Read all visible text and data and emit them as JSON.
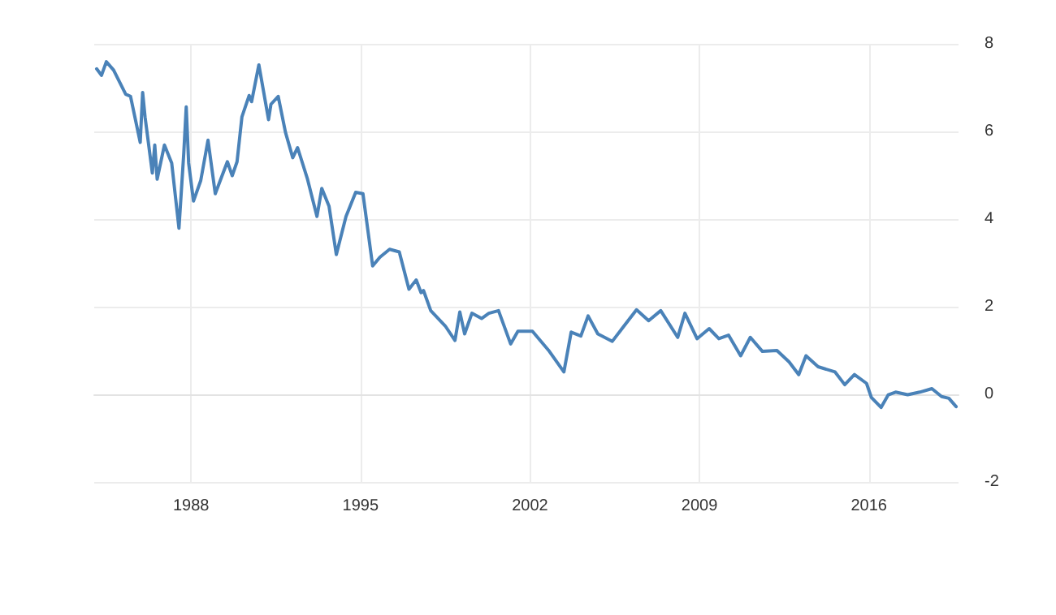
{
  "chart_data": {
    "type": "line",
    "xlim": [
      1984.0,
      2019.7
    ],
    "xticks": [
      1988,
      1995,
      2002,
      2009,
      2016
    ],
    "ylim": [
      -2,
      8
    ],
    "yticks": [
      -2,
      0,
      2,
      4,
      6,
      8
    ],
    "grid": true,
    "marker": "none",
    "line_style": "solid",
    "series": [
      {
        "color": "#4a82b8",
        "x": [
          1984.1,
          1984.3,
          1984.5,
          1984.8,
          1985.3,
          1985.5,
          1985.9,
          1986.0,
          1986.1,
          1986.4,
          1986.5,
          1986.6,
          1986.9,
          1987.2,
          1987.5,
          1987.7,
          1987.8,
          1987.9,
          1988.1,
          1988.4,
          1988.7,
          1989.0,
          1989.5,
          1989.7,
          1989.9,
          1990.1,
          1990.4,
          1990.5,
          1990.8,
          1991.2,
          1991.3,
          1991.6,
          1991.9,
          1992.2,
          1992.4,
          1992.8,
          1993.2,
          1993.4,
          1993.7,
          1994.0,
          1994.4,
          1994.8,
          1995.1,
          1995.5,
          1995.8,
          1996.2,
          1996.6,
          1997.0,
          1997.3,
          1997.5,
          1997.6,
          1997.9,
          1998.5,
          1998.9,
          1999.1,
          1999.3,
          1999.6,
          2000.0,
          2000.3,
          2000.7,
          2001.2,
          2001.5,
          2002.1,
          2002.8,
          2003.4,
          2003.7,
          2004.1,
          2004.4,
          2004.8,
          2005.4,
          2005.8,
          2006.4,
          2006.9,
          2007.4,
          2008.1,
          2008.4,
          2008.9,
          2009.4,
          2009.8,
          2010.2,
          2010.7,
          2011.1,
          2011.6,
          2012.2,
          2012.7,
          2013.1,
          2013.4,
          2013.9,
          2014.6,
          2015.0,
          2015.4,
          2015.9,
          2016.1,
          2016.5,
          2016.8,
          2017.1,
          2017.6,
          2018.1,
          2018.6,
          2019.0,
          2019.3,
          2019.6
        ],
        "values": [
          7.43,
          7.28,
          7.59,
          7.4,
          6.85,
          6.8,
          5.75,
          6.89,
          6.33,
          5.05,
          5.69,
          4.91,
          5.69,
          5.28,
          3.79,
          5.51,
          6.56,
          5.28,
          4.41,
          4.88,
          5.8,
          4.58,
          5.31,
          4.99,
          5.31,
          6.33,
          6.82,
          6.68,
          7.52,
          6.27,
          6.62,
          6.8,
          5.98,
          5.4,
          5.63,
          4.93,
          4.06,
          4.7,
          4.29,
          3.19,
          4.06,
          4.61,
          4.58,
          2.93,
          3.13,
          3.31,
          3.25,
          2.4,
          2.61,
          2.32,
          2.37,
          1.91,
          1.56,
          1.23,
          1.88,
          1.38,
          1.85,
          1.73,
          1.85,
          1.91,
          1.15,
          1.44,
          1.44,
          0.98,
          0.51,
          1.42,
          1.33,
          1.79,
          1.38,
          1.21,
          1.5,
          1.93,
          1.68,
          1.91,
          1.3,
          1.85,
          1.27,
          1.5,
          1.27,
          1.35,
          0.88,
          1.3,
          0.98,
          1.0,
          0.74,
          0.45,
          0.88,
          0.63,
          0.51,
          0.22,
          0.45,
          0.25,
          -0.07,
          -0.3,
          -0.01,
          0.05,
          -0.01,
          0.05,
          0.13,
          -0.05,
          -0.09,
          -0.28
        ]
      }
    ]
  }
}
